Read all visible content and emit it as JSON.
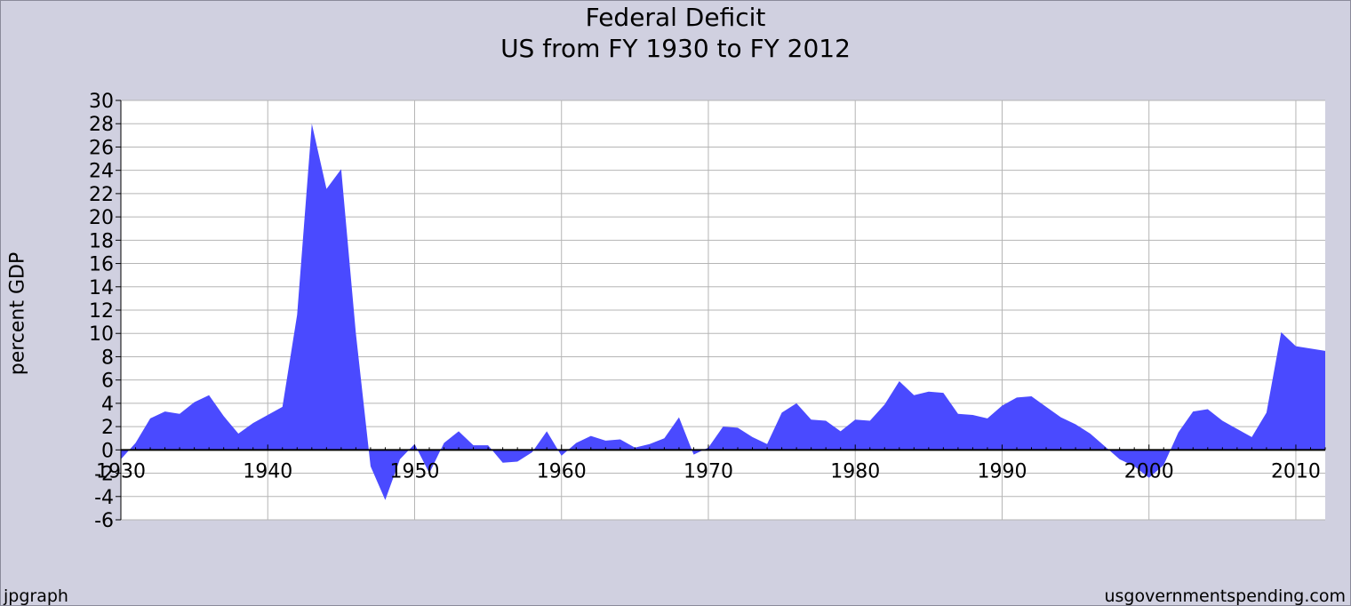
{
  "chart_data": {
    "type": "area",
    "title": "Federal Deficit",
    "subtitle": "US from FY 1930 to FY 2012",
    "xlabel": "",
    "ylabel": "percent GDP",
    "xlim": [
      1930,
      2012
    ],
    "ylim": [
      -6,
      30
    ],
    "y_ticks": [
      -6,
      -4,
      -2,
      0,
      2,
      4,
      6,
      8,
      10,
      12,
      14,
      16,
      18,
      20,
      22,
      24,
      26,
      28,
      30
    ],
    "x_ticks": [
      1930,
      1940,
      1950,
      1960,
      1970,
      1980,
      1990,
      2000,
      2010
    ],
    "grid": true,
    "fill_color": "#4a4aff",
    "x": [
      1930,
      1931,
      1932,
      1933,
      1934,
      1935,
      1936,
      1937,
      1938,
      1939,
      1940,
      1941,
      1942,
      1943,
      1944,
      1945,
      1946,
      1947,
      1948,
      1949,
      1950,
      1951,
      1952,
      1953,
      1954,
      1955,
      1956,
      1957,
      1958,
      1959,
      1960,
      1961,
      1962,
      1963,
      1964,
      1965,
      1966,
      1967,
      1968,
      1969,
      1970,
      1971,
      1972,
      1973,
      1974,
      1975,
      1976,
      1977,
      1978,
      1979,
      1980,
      1981,
      1982,
      1983,
      1984,
      1985,
      1986,
      1987,
      1988,
      1989,
      1990,
      1991,
      1992,
      1993,
      1994,
      1995,
      1996,
      1997,
      1998,
      1999,
      2000,
      2001,
      2002,
      2003,
      2004,
      2005,
      2006,
      2007,
      2008,
      2009,
      2010,
      2011,
      2012
    ],
    "values": [
      -0.8,
      0.6,
      2.7,
      3.3,
      3.1,
      4.1,
      4.7,
      2.9,
      1.4,
      2.3,
      3.0,
      3.7,
      11.6,
      28.0,
      22.4,
      24.1,
      10.0,
      -1.4,
      -4.3,
      -0.8,
      0.5,
      -2.0,
      0.6,
      1.6,
      0.4,
      0.4,
      -1.1,
      -1.0,
      -0.2,
      1.6,
      -0.5,
      0.6,
      1.2,
      0.8,
      0.9,
      0.2,
      0.5,
      1.0,
      2.8,
      -0.4,
      0.2,
      2.0,
      1.9,
      1.1,
      0.5,
      3.2,
      4.0,
      2.6,
      2.5,
      1.6,
      2.6,
      2.5,
      3.9,
      5.9,
      4.7,
      5.0,
      4.9,
      3.1,
      3.0,
      2.7,
      3.8,
      4.5,
      4.6,
      3.7,
      2.8,
      2.2,
      1.4,
      0.3,
      -0.8,
      -1.4,
      -2.4,
      -1.3,
      1.5,
      3.3,
      3.5,
      2.5,
      1.8,
      1.1,
      3.2,
      10.1,
      8.9,
      8.7,
      8.5
    ]
  },
  "footer": {
    "left": "jpgraph",
    "right": "usgovernmentspending.com"
  }
}
